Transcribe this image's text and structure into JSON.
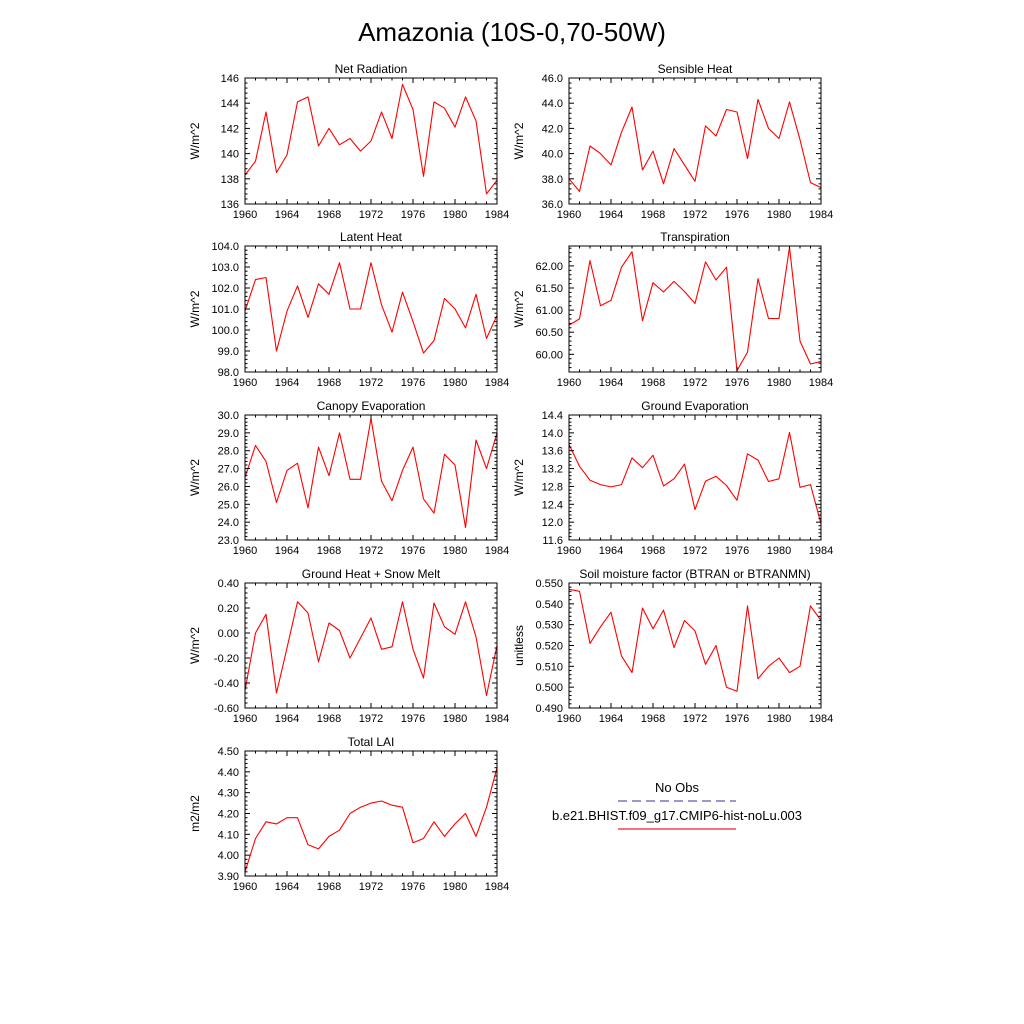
{
  "page_title": "Amazonia (10S-0,70-50W)",
  "legend": {
    "items": [
      {
        "label": "No Obs",
        "color": "#5b5bb0",
        "dash": true
      },
      {
        "label": "b.e21.BHIST.f09_g17.CMIP6-hist-noLu.003",
        "color": "#e8202a",
        "dash": false
      }
    ]
  },
  "chart_data": [
    {
      "type": "line",
      "title": "Net Radiation",
      "ylabel": "W/m^2",
      "xlabel": "",
      "xlim": [
        1960,
        1984
      ],
      "ylim": [
        136,
        146
      ],
      "xticks": [
        1960,
        1964,
        1968,
        1972,
        1976,
        1980,
        1984
      ],
      "yticks": [
        "136",
        "138",
        "140",
        "142",
        "144",
        "146"
      ],
      "series": [
        {
          "color": "#ff0000",
          "x": [
            1960,
            1961,
            1962,
            1963,
            1964,
            1965,
            1966,
            1967,
            1968,
            1969,
            1970,
            1971,
            1972,
            1973,
            1974,
            1975,
            1976,
            1977,
            1978,
            1979,
            1980,
            1981,
            1982,
            1983,
            1984
          ],
          "y": [
            138.3,
            139.4,
            143.3,
            138.5,
            139.9,
            144.1,
            144.5,
            140.6,
            142.0,
            140.7,
            141.2,
            140.2,
            141.0,
            143.3,
            141.2,
            145.5,
            143.5,
            138.2,
            144.1,
            143.6,
            142.1,
            144.5,
            142.6,
            136.8,
            137.9
          ]
        }
      ]
    },
    {
      "type": "line",
      "title": "Sensible Heat",
      "ylabel": "W/m^2",
      "xlabel": "",
      "xlim": [
        1960,
        1984
      ],
      "ylim": [
        36,
        46
      ],
      "xticks": [
        1960,
        1964,
        1968,
        1972,
        1976,
        1980,
        1984
      ],
      "yticks": [
        "36.0",
        "38.0",
        "40.0",
        "42.0",
        "44.0",
        "46.0"
      ],
      "series": [
        {
          "color": "#ff0000",
          "x": [
            1960,
            1961,
            1962,
            1963,
            1964,
            1965,
            1966,
            1967,
            1968,
            1969,
            1970,
            1971,
            1972,
            1973,
            1974,
            1975,
            1976,
            1977,
            1978,
            1979,
            1980,
            1981,
            1982,
            1983,
            1984
          ],
          "y": [
            38.0,
            37.0,
            40.6,
            40.0,
            39.1,
            41.7,
            43.7,
            38.7,
            40.2,
            37.6,
            40.4,
            39.1,
            37.8,
            42.2,
            41.4,
            43.5,
            43.3,
            39.6,
            44.3,
            42.0,
            41.2,
            44.1,
            41.1,
            37.7,
            37.3
          ]
        }
      ]
    },
    {
      "type": "line",
      "title": "Latent Heat",
      "ylabel": "W/m^2",
      "xlabel": "",
      "xlim": [
        1960,
        1984
      ],
      "ylim": [
        98,
        104
      ],
      "xticks": [
        1960,
        1964,
        1968,
        1972,
        1976,
        1980,
        1984
      ],
      "yticks": [
        "98.0",
        "99.0",
        "100.0",
        "101.0",
        "102.0",
        "103.0",
        "104.0"
      ],
      "series": [
        {
          "color": "#ff0000",
          "x": [
            1960,
            1961,
            1962,
            1963,
            1964,
            1965,
            1966,
            1967,
            1968,
            1969,
            1970,
            1971,
            1972,
            1973,
            1974,
            1975,
            1976,
            1977,
            1978,
            1979,
            1980,
            1981,
            1982,
            1983,
            1984
          ],
          "y": [
            100.9,
            102.4,
            102.5,
            99.0,
            100.9,
            102.1,
            100.6,
            102.2,
            101.7,
            103.2,
            101.0,
            101.0,
            103.2,
            101.2,
            99.9,
            101.8,
            100.4,
            98.9,
            99.5,
            101.5,
            101.0,
            100.1,
            101.7,
            99.6,
            100.7
          ]
        }
      ]
    },
    {
      "type": "line",
      "title": "Transpiration",
      "ylabel": "W/m^2",
      "xlabel": "",
      "xlim": [
        1960,
        1984
      ],
      "ylim": [
        59.6,
        62.45
      ],
      "xticks": [
        1960,
        1964,
        1968,
        1972,
        1976,
        1980,
        1984
      ],
      "yticks": [
        "60.00",
        "60.50",
        "61.00",
        "61.50",
        "62.00"
      ],
      "series": [
        {
          "color": "#ff0000",
          "x": [
            1960,
            1961,
            1962,
            1963,
            1964,
            1965,
            1966,
            1967,
            1968,
            1969,
            1970,
            1971,
            1972,
            1973,
            1974,
            1975,
            1976,
            1977,
            1978,
            1979,
            1980,
            1981,
            1982,
            1983,
            1984
          ],
          "y": [
            60.66,
            60.8,
            62.12,
            61.1,
            61.22,
            61.97,
            62.32,
            60.76,
            61.62,
            61.41,
            61.65,
            61.42,
            61.15,
            62.09,
            61.68,
            61.97,
            59.63,
            60.05,
            61.71,
            60.81,
            60.81,
            62.42,
            60.3,
            59.78,
            59.84
          ]
        }
      ]
    },
    {
      "type": "line",
      "title": "Canopy Evaporation",
      "ylabel": "W/m^2",
      "xlabel": "",
      "xlim": [
        1960,
        1984
      ],
      "ylim": [
        23,
        30
      ],
      "xticks": [
        1960,
        1964,
        1968,
        1972,
        1976,
        1980,
        1984
      ],
      "yticks": [
        "23.0",
        "24.0",
        "25.0",
        "26.0",
        "27.0",
        "28.0",
        "29.0",
        "30.0"
      ],
      "series": [
        {
          "color": "#ff0000",
          "x": [
            1960,
            1961,
            1962,
            1963,
            1964,
            1965,
            1966,
            1967,
            1968,
            1969,
            1970,
            1971,
            1972,
            1973,
            1974,
            1975,
            1976,
            1977,
            1978,
            1979,
            1980,
            1981,
            1982,
            1983,
            1984
          ],
          "y": [
            26.5,
            28.3,
            27.4,
            25.1,
            26.9,
            27.3,
            24.8,
            28.2,
            26.6,
            29.0,
            26.4,
            26.4,
            29.8,
            26.3,
            25.2,
            26.9,
            28.2,
            25.3,
            24.5,
            27.8,
            27.2,
            23.7,
            28.6,
            27.0,
            29.0
          ]
        }
      ]
    },
    {
      "type": "line",
      "title": "Ground Evaporation",
      "ylabel": "W/m^2",
      "xlabel": "",
      "xlim": [
        1960,
        1984
      ],
      "ylim": [
        11.6,
        14.4
      ],
      "xticks": [
        1960,
        1964,
        1968,
        1972,
        1976,
        1980,
        1984
      ],
      "yticks": [
        "11.6",
        "12.0",
        "12.4",
        "12.8",
        "13.2",
        "13.6",
        "14.0",
        "14.4"
      ],
      "series": [
        {
          "color": "#ff0000",
          "x": [
            1960,
            1961,
            1962,
            1963,
            1964,
            1965,
            1966,
            1967,
            1968,
            1969,
            1970,
            1971,
            1972,
            1973,
            1974,
            1975,
            1976,
            1977,
            1978,
            1979,
            1980,
            1981,
            1982,
            1983,
            1984
          ],
          "y": [
            13.74,
            13.25,
            12.94,
            12.84,
            12.79,
            12.84,
            13.44,
            13.22,
            13.5,
            12.81,
            12.97,
            13.3,
            12.28,
            12.92,
            13.03,
            12.82,
            12.49,
            13.53,
            13.39,
            12.91,
            12.97,
            14.01,
            12.78,
            12.84,
            11.96
          ]
        }
      ]
    },
    {
      "type": "line",
      "title": "Ground Heat + Snow Melt",
      "ylabel": "W/m^2",
      "xlabel": "",
      "xlim": [
        1960,
        1984
      ],
      "ylim": [
        -0.6,
        0.4
      ],
      "xticks": [
        1960,
        1964,
        1968,
        1972,
        1976,
        1980,
        1984
      ],
      "yticks": [
        "-0.60",
        "-0.40",
        "-0.20",
        "0.00",
        "0.20",
        "0.40"
      ],
      "series": [
        {
          "color": "#ff0000",
          "x": [
            1960,
            1961,
            1962,
            1963,
            1964,
            1965,
            1966,
            1967,
            1968,
            1969,
            1970,
            1971,
            1972,
            1973,
            1974,
            1975,
            1976,
            1977,
            1978,
            1979,
            1980,
            1981,
            1982,
            1983,
            1984
          ],
          "y": [
            -0.46,
            0.0,
            0.15,
            -0.48,
            -0.12,
            0.25,
            0.16,
            -0.23,
            0.08,
            0.02,
            -0.2,
            -0.04,
            0.12,
            -0.13,
            -0.11,
            0.25,
            -0.13,
            -0.36,
            0.24,
            0.05,
            -0.01,
            0.25,
            -0.03,
            -0.5,
            -0.1
          ]
        }
      ]
    },
    {
      "type": "line",
      "title": "Soil moisture factor (BTRAN or BTRANMN)",
      "ylabel": "unitless",
      "xlabel": "",
      "xlim": [
        1960,
        1984
      ],
      "ylim": [
        0.49,
        0.55
      ],
      "xticks": [
        1960,
        1964,
        1968,
        1972,
        1976,
        1980,
        1984
      ],
      "yticks": [
        "0.490",
        "0.500",
        "0.510",
        "0.520",
        "0.530",
        "0.540",
        "0.550"
      ],
      "series": [
        {
          "color": "#ff0000",
          "x": [
            1960,
            1961,
            1962,
            1963,
            1964,
            1965,
            1966,
            1967,
            1968,
            1969,
            1970,
            1971,
            1972,
            1973,
            1974,
            1975,
            1976,
            1977,
            1978,
            1979,
            1980,
            1981,
            1982,
            1983,
            1984
          ],
          "y": [
            0.547,
            0.546,
            0.521,
            0.529,
            0.536,
            0.515,
            0.507,
            0.538,
            0.528,
            0.537,
            0.519,
            0.532,
            0.527,
            0.511,
            0.52,
            0.5,
            0.498,
            0.539,
            0.504,
            0.51,
            0.514,
            0.507,
            0.51,
            0.539,
            0.532
          ]
        }
      ]
    },
    {
      "type": "line",
      "title": "Total LAI",
      "ylabel": "m2/m2",
      "xlabel": "",
      "xlim": [
        1960,
        1984
      ],
      "ylim": [
        3.9,
        4.5
      ],
      "xticks": [
        1960,
        1964,
        1968,
        1972,
        1976,
        1980,
        1984
      ],
      "yticks": [
        "3.90",
        "4.00",
        "4.10",
        "4.20",
        "4.30",
        "4.40",
        "4.50"
      ],
      "series": [
        {
          "color": "#ff0000",
          "x": [
            1960,
            1961,
            1962,
            1963,
            1964,
            1965,
            1966,
            1967,
            1968,
            1969,
            1970,
            1971,
            1972,
            1973,
            1974,
            1975,
            1976,
            1977,
            1978,
            1979,
            1980,
            1981,
            1982,
            1983,
            1984
          ],
          "y": [
            3.92,
            4.08,
            4.16,
            4.15,
            4.18,
            4.18,
            4.05,
            4.03,
            4.09,
            4.12,
            4.2,
            4.23,
            4.25,
            4.26,
            4.24,
            4.23,
            4.06,
            4.08,
            4.16,
            4.09,
            4.15,
            4.2,
            4.09,
            4.23,
            4.42
          ]
        }
      ]
    }
  ]
}
